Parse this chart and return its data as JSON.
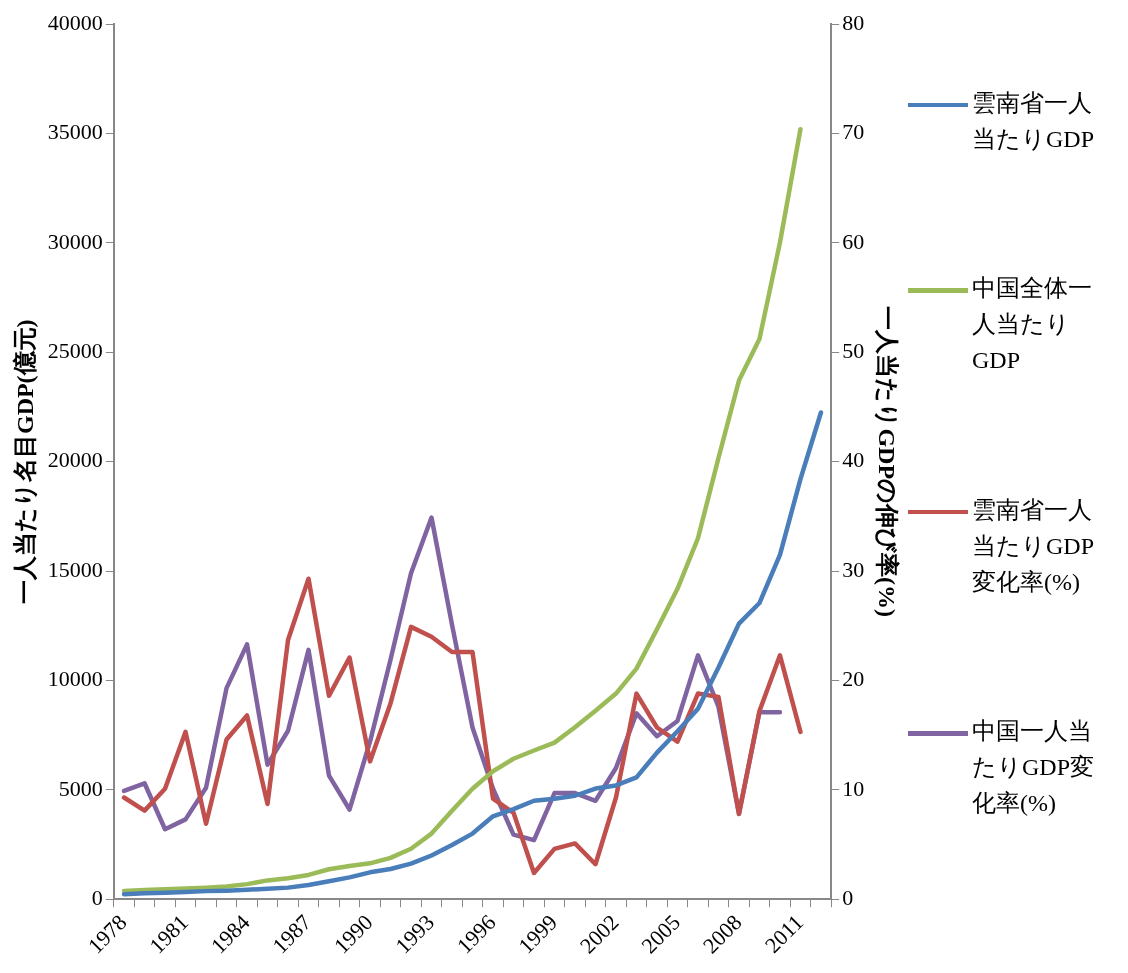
{
  "chart_data": {
    "type": "line",
    "categories": [
      "1978",
      null,
      null,
      "1981",
      null,
      null,
      "1984",
      null,
      null,
      "1987",
      null,
      null,
      "1990",
      null,
      null,
      "1993",
      null,
      null,
      "1996",
      null,
      null,
      "1999",
      null,
      null,
      "2002",
      null,
      null,
      "2005",
      null,
      null,
      "2008",
      null,
      null,
      "2011",
      null
    ],
    "series": [
      {
        "name": "雲南省一人当たりGDP",
        "color": "#4a7ebb",
        "values": [
          230,
          270,
          300,
          330,
          370,
          390,
          430,
          480,
          530,
          650,
          820,
          1000,
          1230,
          1380,
          1630,
          2000,
          2480,
          3000,
          3790,
          4120,
          4500,
          4590,
          4730,
          5060,
          5200,
          5570,
          6700,
          7680,
          8710,
          10590,
          12600,
          13540,
          15740,
          19200,
          22250
        ]
      },
      {
        "name": "中国全体一人当たりGDP",
        "color": "#9bbb59",
        "values": [
          380,
          420,
          460,
          490,
          530,
          580,
          690,
          860,
          960,
          1110,
          1370,
          1520,
          1640,
          1890,
          2310,
          3000,
          4040,
          5050,
          5850,
          6420,
          6800,
          7160,
          7860,
          8620,
          9400,
          10540,
          12340,
          14190,
          16500,
          20170,
          23710,
          25610,
          30020,
          35200,
          null
        ]
      },
      {
        "name": "雲南省一人当たりGDP変化率(%)",
        "color": "#c0504d",
        "axis": "y2",
        "values": [
          9.3,
          8.1,
          10.1,
          15.3,
          6.9,
          14.6,
          16.8,
          8.7,
          23.7,
          29.3,
          18.6,
          22.1,
          12.6,
          17.9,
          24.9,
          24.0,
          22.6,
          22.6,
          9.2,
          7.9,
          2.4,
          4.6,
          5.1,
          3.2,
          9.3,
          18.8,
          15.7,
          14.4,
          18.8,
          18.5,
          7.8,
          17.2,
          22.3,
          15.3,
          null
        ]
      },
      {
        "name": "中国一人当たりGDP変化率(%)",
        "color": "#8064a2",
        "axis": "y2",
        "values": [
          9.9,
          10.6,
          6.4,
          7.3,
          10.2,
          19.3,
          23.3,
          12.3,
          15.4,
          22.8,
          11.3,
          8.2,
          14.4,
          21.9,
          29.8,
          34.9,
          25.1,
          15.7,
          10.1,
          5.9,
          5.4,
          9.7,
          9.7,
          9.0,
          12.0,
          17.0,
          14.9,
          16.3,
          22.3,
          17.6,
          7.8,
          17.1,
          17.1,
          null,
          null
        ]
      }
    ],
    "ylabel": "一人当たり名目GDP(億元)",
    "y2label": "一人当たりGDPの伸び率(%)",
    "ylim": [
      0,
      40000
    ],
    "yticks": [
      0,
      5000,
      10000,
      15000,
      20000,
      25000,
      30000,
      35000,
      40000
    ],
    "y2lim": [
      0,
      80
    ],
    "y2ticks": [
      0,
      10,
      20,
      30,
      40,
      50,
      60,
      70,
      80
    ],
    "grid": false,
    "legend": "right",
    "marker": "none",
    "line_style": "solid"
  }
}
